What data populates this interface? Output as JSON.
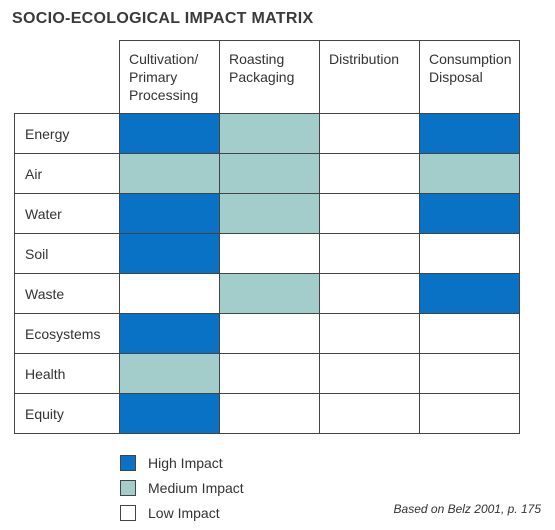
{
  "title": "SOCIO-ECOLOGICAL IMPACT MATRIX",
  "colors": {
    "high": "#0a72c4",
    "medium": "#a2cdcb",
    "low": "#ffffff"
  },
  "columns": [
    "Cultivation/\nPrimary\nProcessing",
    "Roasting\nPackaging",
    "Distribution",
    "Consumption\nDisposal"
  ],
  "rows": [
    {
      "label": "Energy",
      "levels": [
        "high",
        "medium",
        "low",
        "high"
      ]
    },
    {
      "label": "Air",
      "levels": [
        "medium",
        "medium",
        "low",
        "medium"
      ]
    },
    {
      "label": "Water",
      "levels": [
        "high",
        "medium",
        "low",
        "high"
      ]
    },
    {
      "label": "Soil",
      "levels": [
        "high",
        "low",
        "low",
        "low"
      ]
    },
    {
      "label": "Waste",
      "levels": [
        "low",
        "medium",
        "low",
        "high"
      ]
    },
    {
      "label": "Ecosystems",
      "levels": [
        "high",
        "low",
        "low",
        "low"
      ]
    },
    {
      "label": "Health",
      "levels": [
        "medium",
        "low",
        "low",
        "low"
      ]
    },
    {
      "label": "Equity",
      "levels": [
        "high",
        "low",
        "low",
        "low"
      ]
    }
  ],
  "legend": [
    {
      "level": "high",
      "label": "High Impact"
    },
    {
      "level": "medium",
      "label": "Medium Impact"
    },
    {
      "level": "low",
      "label": "Low Impact"
    }
  ],
  "source": "Based on Belz 2001, p. 175"
}
